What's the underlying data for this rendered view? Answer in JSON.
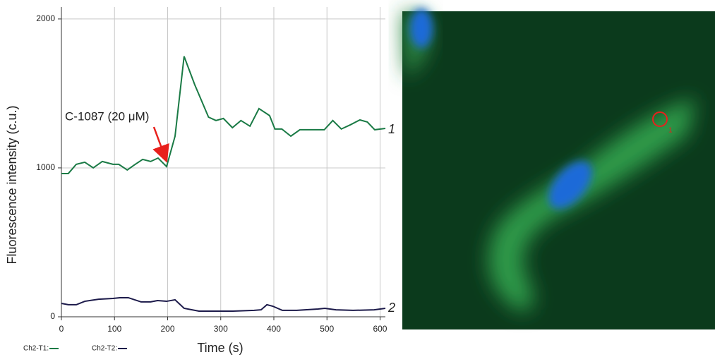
{
  "chart_data": {
    "type": "line",
    "xlabel": "Time (s)",
    "ylabel": "Fluorescence intensity (c.u.)",
    "xlim": [
      0,
      610
    ],
    "ylim": [
      0,
      2080
    ],
    "xticks": [
      0,
      100,
      200,
      300,
      400,
      500,
      600
    ],
    "yticks": [
      0,
      1000,
      2000
    ],
    "grid": true,
    "series": [
      {
        "name": "Ch2-T1:",
        "color": "#1a7a45",
        "x": [
          0,
          13,
          28,
          44,
          60,
          77,
          97,
          108,
          124,
          137,
          153,
          168,
          182,
          198,
          214,
          231,
          251,
          277,
          291,
          305,
          322,
          338,
          355,
          372,
          392,
          402,
          415,
          432,
          449,
          469,
          495,
          511,
          527,
          544,
          562,
          576,
          590,
          610
        ],
        "values": [
          962,
          962,
          1024,
          1038,
          1000,
          1043,
          1024,
          1024,
          986,
          1019,
          1057,
          1043,
          1066,
          1009,
          1213,
          1749,
          1559,
          1341,
          1318,
          1332,
          1270,
          1318,
          1280,
          1398,
          1351,
          1261,
          1261,
          1213,
          1256,
          1256,
          1256,
          1318,
          1261,
          1289,
          1322,
          1308,
          1256,
          1265
        ]
      },
      {
        "name": "Ch2-T2:",
        "color": "#1c1a4a",
        "x": [
          0,
          13,
          28,
          44,
          70,
          97,
          110,
          126,
          150,
          168,
          181,
          198,
          214,
          231,
          259,
          283,
          323,
          363,
          376,
          387,
          398,
          416,
          443,
          483,
          496,
          517,
          549,
          589,
          610
        ],
        "values": [
          90,
          81,
          81,
          104,
          118,
          123,
          128,
          128,
          100,
          100,
          109,
          104,
          114,
          57,
          38,
          38,
          38,
          43,
          47,
          81,
          71,
          43,
          43,
          52,
          57,
          47,
          43,
          47,
          57
        ]
      }
    ],
    "annotations": [
      "C-1087 (20 μM)",
      "1",
      "2"
    ],
    "image_roi_label": "1"
  }
}
